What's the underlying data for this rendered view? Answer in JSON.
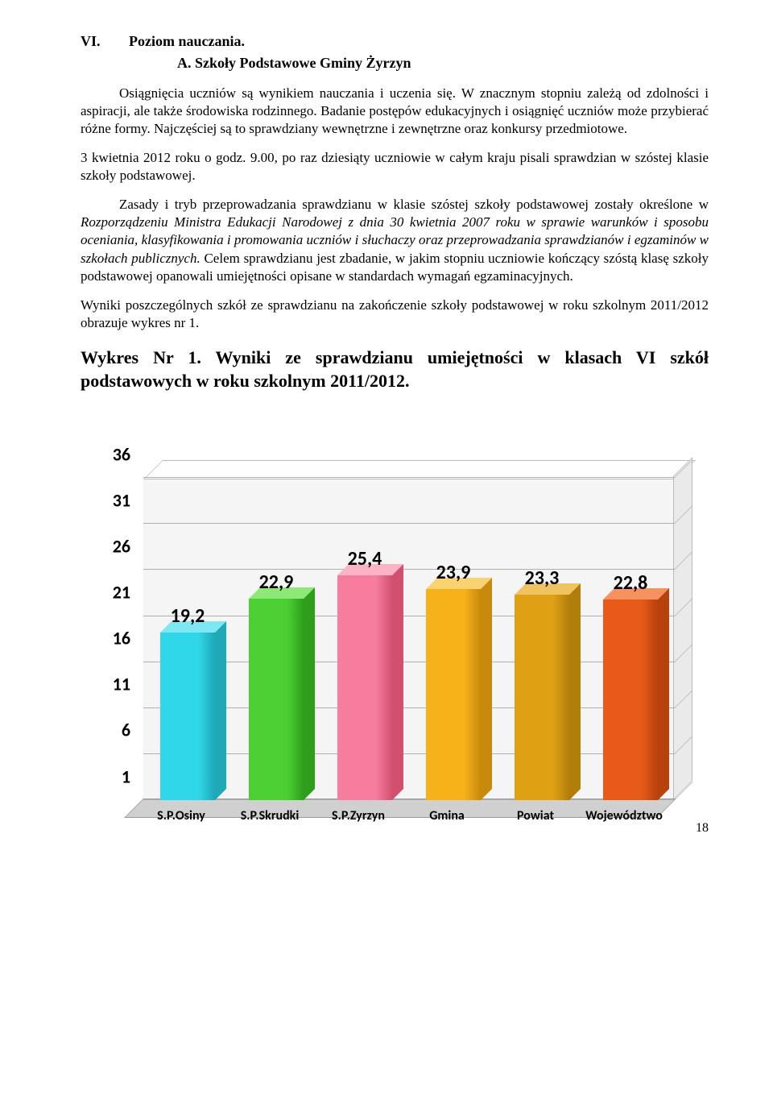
{
  "heading": {
    "roman": "VI.",
    "title": "Poziom nauczania.",
    "subtitle": "A. Szkoły Podstawowe Gminy Żyrzyn"
  },
  "para1": "Osiągnięcia uczniów są wynikiem nauczania i uczenia się. W znacznym stopniu zależą od zdolności i aspiracji, ale także środowiska rodzinnego. Badanie postępów edukacyjnych i osiągnięć uczniów może przybierać różne formy. Najczęściej są to sprawdziany wewnętrzne i zewnętrzne oraz konkursy przedmiotowe.",
  "para2": "3 kwietnia 2012 roku o godz. 9.00, po raz dziesiąty uczniowie w całym kraju pisali sprawdzian w szóstej klasie szkoły podstawowej.",
  "para3_pre": "Zasady i tryb przeprowadzania sprawdzianu w klasie szóstej szkoły podstawowej zostały określone w ",
  "para3_ital": "Rozporządzeniu Ministra Edukacji Narodowej z dnia 30 kwietnia 2007 roku w sprawie warunków i sposobu oceniania, klasyfikowania i promowania uczniów i słuchaczy oraz przeprowadzania sprawdzianów i egzaminów w szkołach publicznych.",
  "para3_post": " Celem sprawdzianu jest zbadanie, w jakim stopniu uczniowie kończący szóstą klasę szkoły podstawowej opanowali umiejętności opisane w standardach wymagań egzaminacyjnych.",
  "para4": "Wyniki poszczególnych szkół ze sprawdzianu na zakończenie szkoły podstawowej w roku szkolnym 2011/2012 obrazuje wykres nr 1.",
  "chart_title": "Wykres Nr 1. Wyniki ze sprawdzianu umiejętności w klasach VI szkół podstawowych w roku szkolnym 2011/2012.",
  "page_number": "18",
  "chart": {
    "type": "bar3d",
    "ymin": 1,
    "ymax": 36,
    "ytick_step": 5,
    "yticks": [
      1,
      6,
      11,
      16,
      21,
      26,
      31,
      36
    ],
    "categories": [
      "S.P.Osiny",
      "S.P.Skrudki",
      "S.P.Zyrzyn",
      "Gmina",
      "Powiat",
      "Województwo"
    ],
    "values": [
      19.2,
      22.9,
      25.4,
      23.9,
      23.3,
      22.8
    ],
    "value_labels": [
      "19,2",
      "22,9",
      "25,4",
      "23,9",
      "23,3",
      "22,8"
    ],
    "bar_colors_front": [
      "#2fd7e8",
      "#4bcf32",
      "#f77d9e",
      "#f7b21a",
      "#e0a014",
      "#e85a1a"
    ],
    "bar_colors_top": [
      "#7de8f2",
      "#8de876",
      "#fbb3c5",
      "#fbd270",
      "#efc360",
      "#f79160"
    ],
    "bar_colors_side": [
      "#1ea8b8",
      "#2f9e1d",
      "#d15070",
      "#c88a0c",
      "#b27e0a",
      "#b8420c"
    ],
    "plot_bg": "#f5f5f5",
    "grid_color": "#b0b0b0",
    "label_fontsize": 24,
    "tick_fontsize": 22,
    "xtick_fontsize": 16,
    "bar_width_ratio": 0.62
  }
}
